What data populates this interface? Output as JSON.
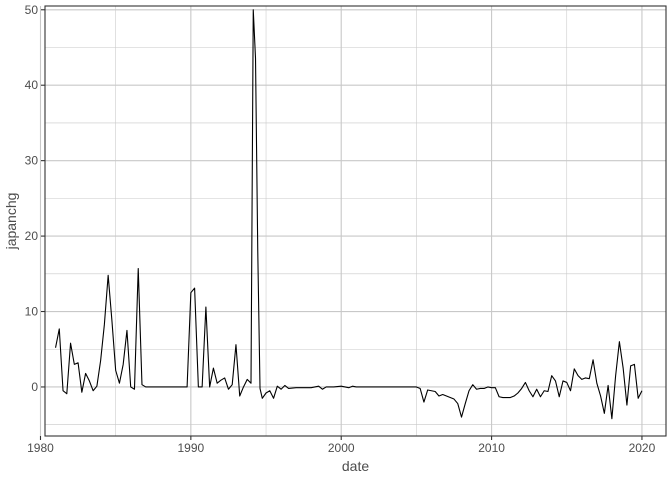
{
  "chart_data": {
    "type": "line",
    "xlabel": "date",
    "ylabel": "japanchg",
    "xlim": [
      1980.3,
      2021.6
    ],
    "ylim": [
      -6.5,
      50.5
    ],
    "x_ticks": [
      1980,
      1990,
      2000,
      2010,
      2020
    ],
    "y_ticks": [
      0,
      10,
      20,
      30,
      40,
      50
    ],
    "x_tick_labels": [
      "1980",
      "1990",
      "2000",
      "2010",
      "2020"
    ],
    "y_tick_labels": [
      "0",
      "10",
      "20",
      "30",
      "40",
      "50"
    ],
    "grid": true,
    "colors": {
      "line": "#000000",
      "grid": "#c8c8c8",
      "frame": "#333333",
      "text": "#4d4d4d"
    },
    "series": [
      {
        "points": [
          [
            1981.0,
            5.2
          ],
          [
            1981.25,
            7.7
          ],
          [
            1981.5,
            -0.5
          ],
          [
            1981.75,
            -0.9
          ],
          [
            1982.0,
            5.8
          ],
          [
            1982.25,
            3.0
          ],
          [
            1982.5,
            3.2
          ],
          [
            1982.75,
            -0.7
          ],
          [
            1983.0,
            1.8
          ],
          [
            1983.25,
            0.8
          ],
          [
            1983.5,
            -0.5
          ],
          [
            1983.75,
            0.1
          ],
          [
            1984.0,
            3.5
          ],
          [
            1984.25,
            8.3
          ],
          [
            1984.5,
            14.8
          ],
          [
            1984.75,
            8.8
          ],
          [
            1985.0,
            2.2
          ],
          [
            1985.25,
            0.5
          ],
          [
            1985.5,
            3.0
          ],
          [
            1985.75,
            7.5
          ],
          [
            1986.0,
            0.0
          ],
          [
            1986.25,
            -0.3
          ],
          [
            1986.5,
            15.7
          ],
          [
            1986.75,
            0.3
          ],
          [
            1987.0,
            0.0
          ],
          [
            1988.0,
            0.0
          ],
          [
            1989.0,
            0.0
          ],
          [
            1989.75,
            0.0
          ],
          [
            1990.0,
            12.5
          ],
          [
            1990.25,
            13.1
          ],
          [
            1990.5,
            0.0
          ],
          [
            1990.75,
            0.0
          ],
          [
            1991.0,
            10.6
          ],
          [
            1991.25,
            0.0
          ],
          [
            1991.5,
            2.5
          ],
          [
            1991.75,
            0.5
          ],
          [
            1992.0,
            0.9
          ],
          [
            1992.25,
            1.2
          ],
          [
            1992.5,
            -0.3
          ],
          [
            1992.75,
            0.3
          ],
          [
            1993.0,
            5.6
          ],
          [
            1993.25,
            -1.2
          ],
          [
            1993.5,
            0.0
          ],
          [
            1993.75,
            1.0
          ],
          [
            1994.0,
            0.5
          ],
          [
            1994.15,
            50.0
          ],
          [
            1994.3,
            43.6
          ],
          [
            1994.45,
            18.0
          ],
          [
            1994.6,
            -0.2
          ],
          [
            1994.75,
            -1.5
          ],
          [
            1995.0,
            -0.8
          ],
          [
            1995.25,
            -0.5
          ],
          [
            1995.5,
            -1.5
          ],
          [
            1995.75,
            0.1
          ],
          [
            1996.0,
            -0.3
          ],
          [
            1996.25,
            0.2
          ],
          [
            1996.5,
            -0.2
          ],
          [
            1997.0,
            -0.1
          ],
          [
            1998.0,
            -0.1
          ],
          [
            1998.5,
            0.1
          ],
          [
            1998.75,
            -0.3
          ],
          [
            1999.0,
            0.0
          ],
          [
            1999.5,
            0.0
          ],
          [
            2000.0,
            0.1
          ],
          [
            2000.5,
            -0.1
          ],
          [
            2000.75,
            0.1
          ],
          [
            2001.0,
            0.0
          ],
          [
            2002.0,
            0.0
          ],
          [
            2003.0,
            0.0
          ],
          [
            2004.0,
            0.0
          ],
          [
            2005.0,
            0.0
          ],
          [
            2005.25,
            -0.2
          ],
          [
            2005.5,
            -2.0
          ],
          [
            2005.75,
            -0.4
          ],
          [
            2006.0,
            -0.5
          ],
          [
            2006.25,
            -0.6
          ],
          [
            2006.5,
            -1.2
          ],
          [
            2006.75,
            -1.0
          ],
          [
            2007.0,
            -1.2
          ],
          [
            2007.25,
            -1.4
          ],
          [
            2007.5,
            -1.6
          ],
          [
            2007.75,
            -2.2
          ],
          [
            2008.0,
            -4.0
          ],
          [
            2008.25,
            -2.2
          ],
          [
            2008.5,
            -0.5
          ],
          [
            2008.75,
            0.3
          ],
          [
            2009.0,
            -0.3
          ],
          [
            2009.25,
            -0.2
          ],
          [
            2009.5,
            -0.2
          ],
          [
            2009.75,
            0.0
          ],
          [
            2010.0,
            -0.1
          ],
          [
            2010.25,
            -0.1
          ],
          [
            2010.5,
            -1.3
          ],
          [
            2010.75,
            -1.4
          ],
          [
            2011.0,
            -1.4
          ],
          [
            2011.25,
            -1.4
          ],
          [
            2011.5,
            -1.2
          ],
          [
            2011.75,
            -0.8
          ],
          [
            2012.0,
            -0.2
          ],
          [
            2012.25,
            0.6
          ],
          [
            2012.5,
            -0.5
          ],
          [
            2012.75,
            -1.3
          ],
          [
            2013.0,
            -0.3
          ],
          [
            2013.25,
            -1.3
          ],
          [
            2013.5,
            -0.5
          ],
          [
            2013.75,
            -0.6
          ],
          [
            2014.0,
            1.5
          ],
          [
            2014.25,
            0.8
          ],
          [
            2014.5,
            -1.3
          ],
          [
            2014.75,
            0.8
          ],
          [
            2015.0,
            0.6
          ],
          [
            2015.25,
            -0.5
          ],
          [
            2015.5,
            2.4
          ],
          [
            2015.75,
            1.5
          ],
          [
            2016.0,
            1.0
          ],
          [
            2016.25,
            1.2
          ],
          [
            2016.5,
            1.1
          ],
          [
            2016.75,
            3.6
          ],
          [
            2017.0,
            0.5
          ],
          [
            2017.25,
            -1.2
          ],
          [
            2017.5,
            -3.5
          ],
          [
            2017.75,
            0.2
          ],
          [
            2018.0,
            -4.2
          ],
          [
            2018.25,
            1.5
          ],
          [
            2018.5,
            6.0
          ],
          [
            2018.75,
            2.5
          ],
          [
            2019.0,
            -2.4
          ],
          [
            2019.25,
            2.8
          ],
          [
            2019.5,
            3.0
          ],
          [
            2019.75,
            -1.5
          ],
          [
            2020.0,
            -0.5
          ]
        ]
      }
    ]
  }
}
